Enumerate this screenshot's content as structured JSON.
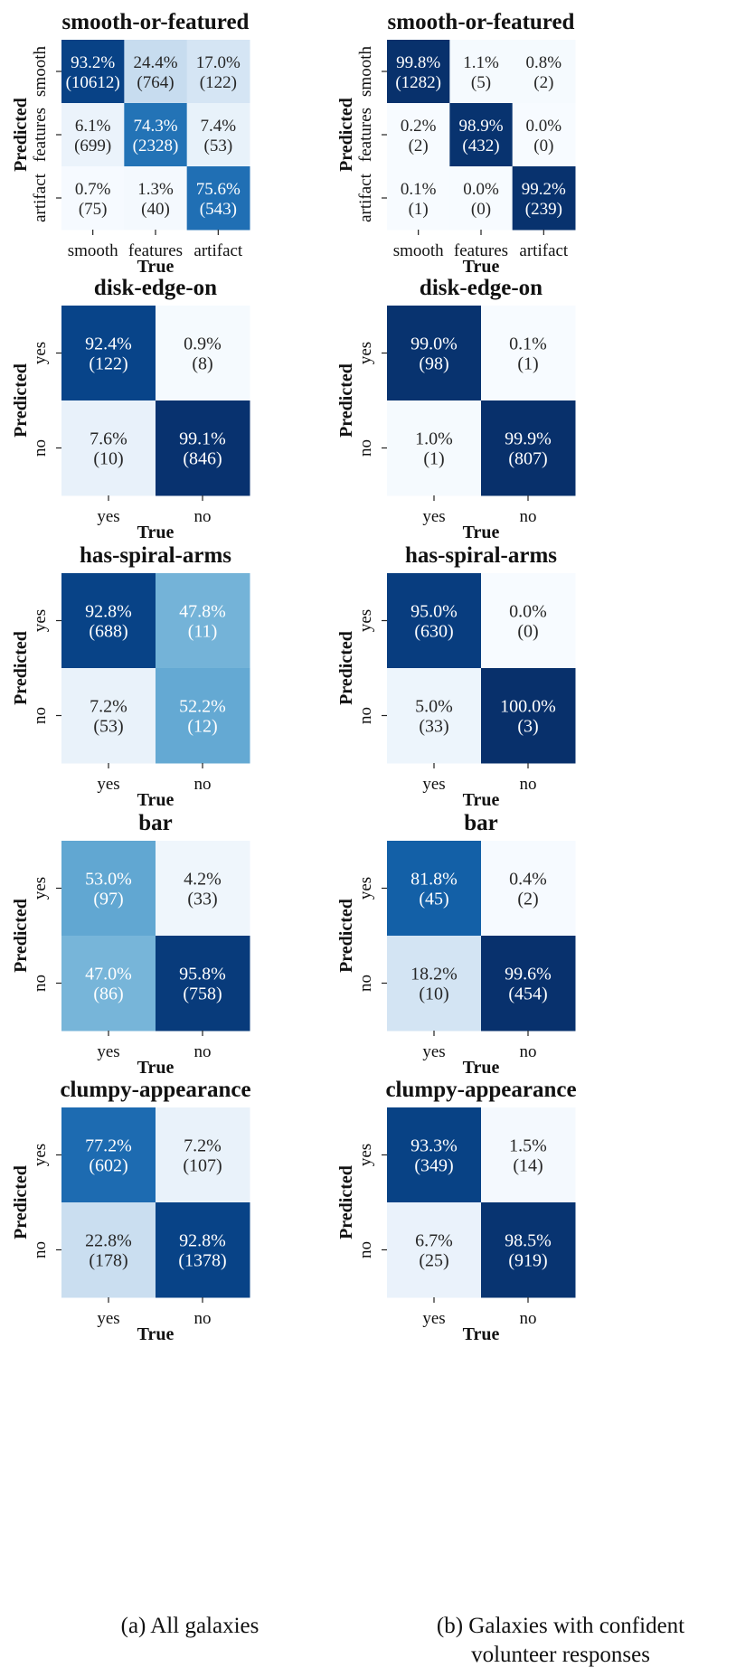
{
  "chart_data": [
    {
      "type": "heatmap",
      "title": "smooth-or-featured",
      "xlabel": "True",
      "ylabel": "Predicted",
      "categories": [
        "smooth",
        "features",
        "artifact"
      ],
      "percent_labels": [
        [
          "93.2%",
          "24.4%",
          "17.0%"
        ],
        [
          "6.1%",
          "74.3%",
          "7.4%"
        ],
        [
          "0.7%",
          "1.3%",
          "75.6%"
        ]
      ],
      "count_labels": [
        [
          "(10612)",
          "(764)",
          "(122)"
        ],
        [
          "(699)",
          "(2328)",
          "(53)"
        ],
        [
          "(75)",
          "(40)",
          "(543)"
        ]
      ],
      "values": [
        [
          93.2,
          24.4,
          17.0
        ],
        [
          6.1,
          74.3,
          7.4
        ],
        [
          0.7,
          1.3,
          75.6
        ]
      ]
    },
    {
      "type": "heatmap",
      "title": "smooth-or-featured",
      "xlabel": "True",
      "ylabel": "Predicted",
      "categories": [
        "smooth",
        "features",
        "artifact"
      ],
      "percent_labels": [
        [
          "99.8%",
          "1.1%",
          "0.8%"
        ],
        [
          "0.2%",
          "98.9%",
          "0.0%"
        ],
        [
          "0.1%",
          "0.0%",
          "99.2%"
        ]
      ],
      "count_labels": [
        [
          "(1282)",
          "(5)",
          "(2)"
        ],
        [
          "(2)",
          "(432)",
          "(0)"
        ],
        [
          "(1)",
          "(0)",
          "(239)"
        ]
      ],
      "values": [
        [
          99.8,
          1.1,
          0.8
        ],
        [
          0.2,
          98.9,
          0.0
        ],
        [
          0.1,
          0.0,
          99.2
        ]
      ]
    },
    {
      "type": "heatmap",
      "title": "disk-edge-on",
      "xlabel": "True",
      "ylabel": "Predicted",
      "categories": [
        "yes",
        "no"
      ],
      "percent_labels": [
        [
          "92.4%",
          "0.9%"
        ],
        [
          "7.6%",
          "99.1%"
        ]
      ],
      "count_labels": [
        [
          "(122)",
          "(8)"
        ],
        [
          "(10)",
          "(846)"
        ]
      ],
      "values": [
        [
          92.4,
          0.9
        ],
        [
          7.6,
          99.1
        ]
      ]
    },
    {
      "type": "heatmap",
      "title": "disk-edge-on",
      "xlabel": "True",
      "ylabel": "Predicted",
      "categories": [
        "yes",
        "no"
      ],
      "percent_labels": [
        [
          "99.0%",
          "0.1%"
        ],
        [
          "1.0%",
          "99.9%"
        ]
      ],
      "count_labels": [
        [
          "(98)",
          "(1)"
        ],
        [
          "(1)",
          "(807)"
        ]
      ],
      "values": [
        [
          99.0,
          0.1
        ],
        [
          1.0,
          99.9
        ]
      ]
    },
    {
      "type": "heatmap",
      "title": "has-spiral-arms",
      "xlabel": "True",
      "ylabel": "Predicted",
      "categories": [
        "yes",
        "no"
      ],
      "percent_labels": [
        [
          "92.8%",
          "47.8%"
        ],
        [
          "7.2%",
          "52.2%"
        ]
      ],
      "count_labels": [
        [
          "(688)",
          "(11)"
        ],
        [
          "(53)",
          "(12)"
        ]
      ],
      "values": [
        [
          92.8,
          47.8
        ],
        [
          7.2,
          52.2
        ]
      ]
    },
    {
      "type": "heatmap",
      "title": "has-spiral-arms",
      "xlabel": "True",
      "ylabel": "Predicted",
      "categories": [
        "yes",
        "no"
      ],
      "percent_labels": [
        [
          "95.0%",
          "0.0%"
        ],
        [
          "5.0%",
          "100.0%"
        ]
      ],
      "count_labels": [
        [
          "(630)",
          "(0)"
        ],
        [
          "(33)",
          "(3)"
        ]
      ],
      "values": [
        [
          95.0,
          0.0
        ],
        [
          5.0,
          100.0
        ]
      ]
    },
    {
      "type": "heatmap",
      "title": "bar",
      "xlabel": "True",
      "ylabel": "Predicted",
      "categories": [
        "yes",
        "no"
      ],
      "percent_labels": [
        [
          "53.0%",
          "4.2%"
        ],
        [
          "47.0%",
          "95.8%"
        ]
      ],
      "count_labels": [
        [
          "(97)",
          "(33)"
        ],
        [
          "(86)",
          "(758)"
        ]
      ],
      "values": [
        [
          53.0,
          4.2
        ],
        [
          47.0,
          95.8
        ]
      ]
    },
    {
      "type": "heatmap",
      "title": "bar",
      "xlabel": "True",
      "ylabel": "Predicted",
      "categories": [
        "yes",
        "no"
      ],
      "percent_labels": [
        [
          "81.8%",
          "0.4%"
        ],
        [
          "18.2%",
          "99.6%"
        ]
      ],
      "count_labels": [
        [
          "(45)",
          "(2)"
        ],
        [
          "(10)",
          "(454)"
        ]
      ],
      "values": [
        [
          81.8,
          0.4
        ],
        [
          18.2,
          99.6
        ]
      ]
    },
    {
      "type": "heatmap",
      "title": "clumpy-appearance",
      "xlabel": "True",
      "ylabel": "Predicted",
      "categories": [
        "yes",
        "no"
      ],
      "percent_labels": [
        [
          "77.2%",
          "7.2%"
        ],
        [
          "22.8%",
          "92.8%"
        ]
      ],
      "count_labels": [
        [
          "(602)",
          "(107)"
        ],
        [
          "(178)",
          "(1378)"
        ]
      ],
      "values": [
        [
          77.2,
          7.2
        ],
        [
          22.8,
          92.8
        ]
      ]
    },
    {
      "type": "heatmap",
      "title": "clumpy-appearance",
      "xlabel": "True",
      "ylabel": "Predicted",
      "categories": [
        "yes",
        "no"
      ],
      "percent_labels": [
        [
          "93.3%",
          "1.5%"
        ],
        [
          "6.7%",
          "98.5%"
        ]
      ],
      "count_labels": [
        [
          "(349)",
          "(14)"
        ],
        [
          "(25)",
          "(919)"
        ]
      ],
      "values": [
        [
          93.3,
          1.5
        ],
        [
          6.7,
          98.5
        ]
      ]
    }
  ],
  "captions": {
    "left": "(a) All galaxies",
    "right_line1": "(b) Galaxies with confident",
    "right_line2": "volunteer responses"
  },
  "colors": {
    "cmap_low": "#f7fbff",
    "cmap_mid": "#6baed6",
    "cmap_high": "#08306b",
    "text_dark": "#262626",
    "text_light": "#ffffff"
  }
}
